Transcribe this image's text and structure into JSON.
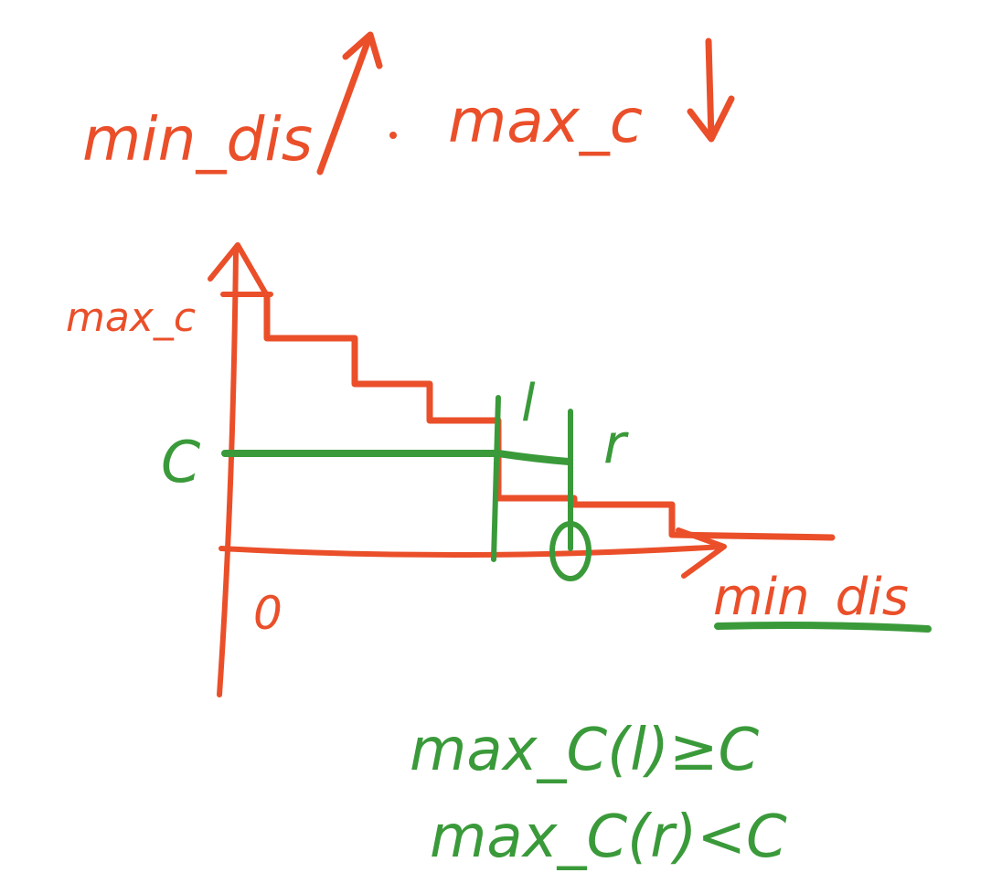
{
  "colors": {
    "red": "#ea4f2a",
    "green": "#3a9a3a",
    "background": "#ffffff"
  },
  "heading": {
    "left": "min_dis",
    "right": "max_c"
  },
  "axes": {
    "y_label": "max_c",
    "x_label": "min_dis",
    "origin": "0"
  },
  "markers": {
    "c": "C",
    "l": "l",
    "r": "r"
  },
  "conditions": {
    "line1": "max_C(l)≥C",
    "line2": "max_C(r)<C"
  }
}
